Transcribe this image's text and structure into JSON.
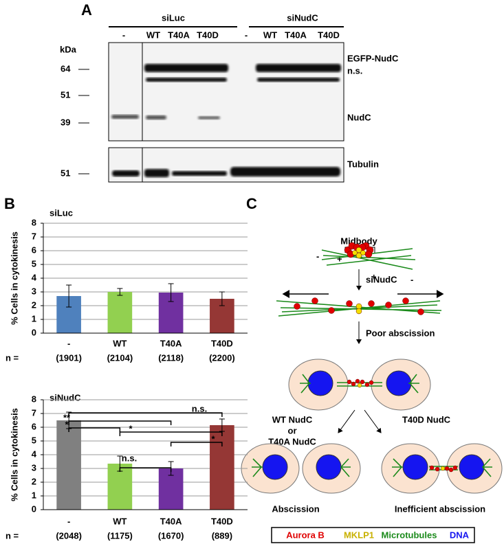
{
  "blot": {
    "panel": "A",
    "groups": [
      "siLuc",
      "siNudC"
    ],
    "lanes": [
      "-",
      "WT",
      "T40A",
      "T40D",
      "-",
      "WT",
      "T40A",
      "T40D"
    ],
    "unit": "kDa",
    "markers": [
      "64",
      "51",
      "39"
    ],
    "bands": [
      "EGFP-NudC",
      "n.s.",
      "NudC"
    ],
    "tubulin_marker": "51",
    "tubulin": "Tubulin"
  },
  "panel_b": "B",
  "chart_data": [
    {
      "type": "bar",
      "title": "siLuc",
      "y_label": "% Cells in cytokinesis",
      "categories": [
        "-",
        "WT",
        "T40A",
        "T40D"
      ],
      "values": [
        2.7,
        3.0,
        2.95,
        2.5
      ],
      "error": [
        0.8,
        0.25,
        0.65,
        0.5
      ],
      "colors": [
        "#4f81bd",
        "#92d050",
        "#7030a0",
        "#953735"
      ],
      "n_label": "n =",
      "n_values": [
        "(1901)",
        "(2104)",
        "(2118)",
        "(2200)"
      ],
      "ylim": [
        0,
        8
      ],
      "yticks": [
        0,
        1,
        2,
        3,
        4,
        5,
        6,
        7,
        8
      ],
      "grid": true
    },
    {
      "type": "bar",
      "title": "siNudC",
      "y_label": "% Cells in cytokinesis",
      "categories": [
        "-",
        "WT",
        "T40A",
        "T40D"
      ],
      "values": [
        6.5,
        3.35,
        3.0,
        6.15
      ],
      "error": [
        0.6,
        0.55,
        0.5,
        0.45
      ],
      "colors": [
        "#808080",
        "#92d050",
        "#7030a0",
        "#953735"
      ],
      "n_label": "n =",
      "n_values": [
        "(2048)",
        "(1175)",
        "(1670)",
        "(889)"
      ],
      "ylim": [
        0,
        8
      ],
      "yticks": [
        0,
        1,
        2,
        3,
        4,
        5,
        6,
        7,
        8
      ],
      "grid": true,
      "annotations": [
        "n.s.",
        "**",
        "*",
        "*",
        "*",
        "n.s."
      ]
    }
  ],
  "diagram": {
    "panel": "C",
    "midbody": "Midbody",
    "minus": "-",
    "plus": "+",
    "step1": "siNudC",
    "step2": "Poor abscission",
    "left_1": "WT NudC",
    "left_2": "or",
    "left_3": "T40A NudC",
    "right": "T40D NudC",
    "left_result": "Abscission",
    "right_result": "Inefficient abscission",
    "legend": [
      "Aurora B",
      "MKLP1",
      "Microtubules",
      "DNA"
    ]
  }
}
